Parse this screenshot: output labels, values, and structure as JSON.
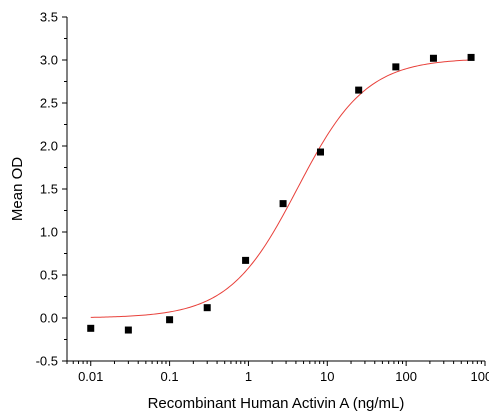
{
  "chart_data": {
    "type": "scatter",
    "title": "",
    "xlabel": "Recombinant Human Activin A (ng/mL)",
    "ylabel": "Mean OD",
    "x_scale": "log",
    "xlim": [
      0.005,
      1000
    ],
    "ylim": [
      -0.5,
      3.5
    ],
    "x_ticks": [
      0.01,
      0.1,
      1,
      10,
      100,
      1000
    ],
    "x_tick_labels": [
      "0.01",
      "0.1",
      "1",
      "10",
      "100",
      "1000"
    ],
    "y_ticks": [
      -0.5,
      0.0,
      0.5,
      1.0,
      1.5,
      2.0,
      2.5,
      3.0,
      3.5
    ],
    "y_tick_labels": [
      "-0.5",
      "0.0",
      "0.5",
      "1.0",
      "1.5",
      "2.0",
      "2.5",
      "3.0",
      "3.5"
    ],
    "grid": false,
    "legend": "none",
    "marker_color": "#000000",
    "fit_color": "#e8403a",
    "series": [
      {
        "x": [
          0.01,
          0.03,
          0.1,
          0.3,
          0.92,
          2.75,
          8.2,
          25,
          74,
          222,
          666
        ],
        "y": [
          -0.12,
          -0.14,
          -0.02,
          0.12,
          0.67,
          1.33,
          1.93,
          2.65,
          2.92,
          3.02,
          3.03
        ]
      }
    ],
    "fit_curve": {
      "model": "4PL",
      "bottom": 0.0,
      "top": 3.02,
      "ec50": 4.2,
      "hill": 1.0
    }
  }
}
